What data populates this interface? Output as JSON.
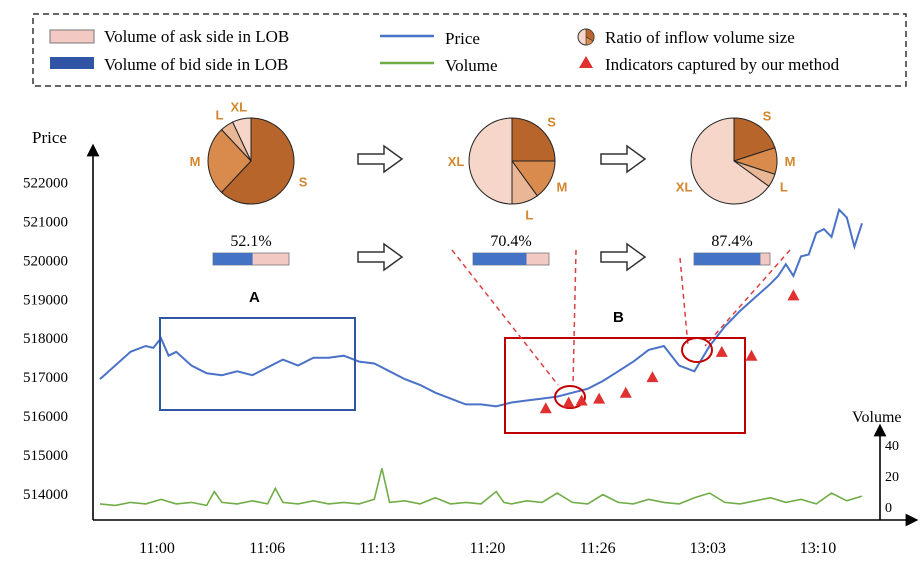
{
  "legend": {
    "ask_label": "Volume of ask side in LOB",
    "bid_label": "Volume of bid side in LOB",
    "price_label": "Price",
    "volume_label": "Volume",
    "ratio_label": "Ratio of inflow volume size",
    "indicator_label": "Indicators captured  by our method"
  },
  "colors": {
    "ask": "#f3c9c4",
    "bid": "#4472c4",
    "price_line": "#4a72c8",
    "volume_line": "#70ad47",
    "indicator": "#e03030",
    "box_a": "#2f55a4",
    "box_b": "#c00000",
    "pie_s": "#b8652b",
    "pie_m": "#d98b4e",
    "pie_l": "#e9b796",
    "pie_xl": "#f5d6c9",
    "slice_label": "#d2872f"
  },
  "annotations": {
    "region_a": "A",
    "region_b": "B"
  },
  "snapshots": [
    {
      "ratio_text": "52.1%",
      "bid_fraction": 0.521,
      "pie": [
        {
          "label": "S",
          "value": 0.62
        },
        {
          "label": "M",
          "value": 0.26
        },
        {
          "label": "L",
          "value": 0.05
        },
        {
          "label": "XL",
          "value": 0.07
        }
      ]
    },
    {
      "ratio_text": "70.4%",
      "bid_fraction": 0.704,
      "pie": [
        {
          "label": "S",
          "value": 0.25
        },
        {
          "label": "M",
          "value": 0.15
        },
        {
          "label": "L",
          "value": 0.1
        },
        {
          "label": "XL",
          "value": 0.5
        }
      ]
    },
    {
      "ratio_text": "87.4%",
      "bid_fraction": 0.874,
      "pie": [
        {
          "label": "S",
          "value": 0.2
        },
        {
          "label": "M",
          "value": 0.1
        },
        {
          "label": "L",
          "value": 0.05
        },
        {
          "label": "XL",
          "value": 0.65
        }
      ]
    }
  ],
  "chart_data": {
    "type": "line",
    "ylabel": "Price",
    "y2label": "Volume",
    "x_ticks": [
      "11:00",
      "11:06",
      "11:13",
      "11:20",
      "11:26",
      "13:03",
      "13:10"
    ],
    "y_ticks": [
      514000,
      515000,
      516000,
      517000,
      518000,
      519000,
      520000,
      521000,
      522000
    ],
    "y2_ticks": [
      0,
      20,
      40
    ],
    "ylim": [
      513600,
      522600
    ],
    "y2lim": [
      0,
      48
    ],
    "xlim": [
      0,
      100
    ],
    "series": [
      {
        "name": "Price",
        "x": [
          0,
          2,
          4,
          6,
          7,
          8,
          9,
          10,
          12,
          14,
          16,
          18,
          20,
          22,
          24,
          26,
          28,
          30,
          32,
          34,
          36,
          38,
          40,
          42,
          44,
          46,
          48,
          50,
          52,
          54,
          56,
          58,
          60,
          62,
          64,
          66,
          68,
          70,
          72,
          74,
          76,
          78,
          80,
          81,
          82,
          84,
          86,
          88,
          89,
          90,
          91,
          92,
          93,
          94,
          95,
          96,
          97,
          98,
          99,
          100
        ],
        "y": [
          516950,
          517300,
          517650,
          517800,
          517750,
          518000,
          517550,
          517650,
          517300,
          517100,
          517050,
          517150,
          517050,
          517250,
          517450,
          517300,
          517500,
          517500,
          517550,
          517400,
          517350,
          517150,
          516950,
          516800,
          516600,
          516450,
          516300,
          516300,
          516250,
          516350,
          516400,
          516450,
          516500,
          516600,
          516700,
          516900,
          517150,
          517400,
          517700,
          517800,
          517300,
          517150,
          517800,
          518050,
          518300,
          518700,
          519050,
          519400,
          519600,
          519900,
          519600,
          520100,
          520150,
          520700,
          520800,
          520600,
          521300,
          521100,
          520350,
          520950
        ]
      },
      {
        "name": "Volume",
        "x": [
          0,
          2,
          4,
          6,
          8,
          10,
          12,
          14,
          15,
          16,
          18,
          20,
          22,
          23,
          24,
          26,
          28,
          30,
          32,
          34,
          36,
          37,
          38,
          40,
          42,
          44,
          46,
          48,
          50,
          52,
          53,
          54,
          56,
          58,
          60,
          62,
          64,
          66,
          68,
          70,
          72,
          74,
          76,
          78,
          80,
          82,
          84,
          86,
          88,
          90,
          92,
          94,
          96,
          98,
          100
        ],
        "y": [
          2,
          1,
          3,
          2,
          5,
          2,
          3,
          1,
          10,
          3,
          2,
          4,
          2,
          12,
          3,
          2,
          4,
          2,
          3,
          2,
          5,
          25,
          3,
          4,
          2,
          6,
          2,
          3,
          2,
          10,
          3,
          2,
          4,
          3,
          9,
          3,
          2,
          8,
          3,
          2,
          5,
          3,
          2,
          6,
          9,
          3,
          2,
          4,
          6,
          3,
          5,
          2,
          9,
          4,
          7
        ]
      }
    ],
    "indicators": [
      {
        "x": 58.5,
        "y": 516200
      },
      {
        "x": 61.5,
        "y": 516350
      },
      {
        "x": 63.2,
        "y": 516400
      },
      {
        "x": 65.5,
        "y": 516450
      },
      {
        "x": 69,
        "y": 516600
      },
      {
        "x": 72.5,
        "y": 517000
      },
      {
        "x": 81.6,
        "y": 517650
      },
      {
        "x": 85.5,
        "y": 517550
      },
      {
        "x": 91,
        "y": 519100
      }
    ]
  }
}
